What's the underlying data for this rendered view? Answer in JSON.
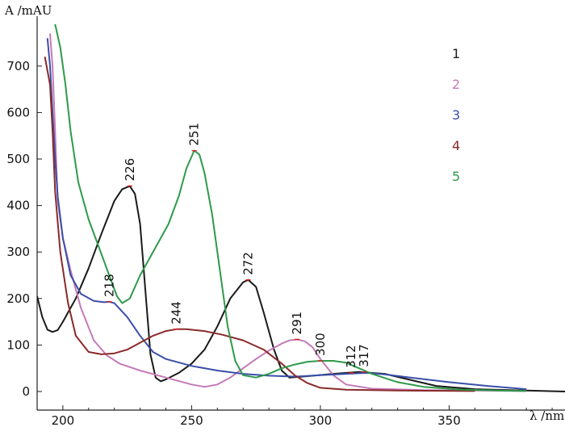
{
  "chart_data": {
    "type": "line",
    "xlabel": "λ /nm",
    "ylabel": "A /mAU",
    "xlim": [
      190,
      395
    ],
    "ylim": [
      -40,
      790
    ],
    "xticks": [
      200,
      250,
      300,
      350
    ],
    "yticks": [
      0,
      100,
      200,
      300,
      400,
      500,
      600,
      700
    ],
    "grid": false,
    "legend": "top-right",
    "series": [
      {
        "name": "1",
        "color": "#1a1a1a",
        "points": [
          [
            190,
            205
          ],
          [
            192,
            160
          ],
          [
            194,
            133
          ],
          [
            196,
            128
          ],
          [
            198,
            132
          ],
          [
            200,
            150
          ],
          [
            205,
            200
          ],
          [
            210,
            265
          ],
          [
            215,
            340
          ],
          [
            220,
            410
          ],
          [
            223,
            435
          ],
          [
            226,
            442
          ],
          [
            228,
            425
          ],
          [
            230,
            360
          ],
          [
            232,
            220
          ],
          [
            234,
            80
          ],
          [
            236,
            30
          ],
          [
            238,
            22
          ],
          [
            240,
            26
          ],
          [
            245,
            40
          ],
          [
            250,
            60
          ],
          [
            255,
            90
          ],
          [
            260,
            140
          ],
          [
            265,
            200
          ],
          [
            270,
            235
          ],
          [
            272,
            240
          ],
          [
            275,
            225
          ],
          [
            278,
            170
          ],
          [
            282,
            90
          ],
          [
            285,
            45
          ],
          [
            288,
            30
          ],
          [
            295,
            33
          ],
          [
            305,
            38
          ],
          [
            315,
            42
          ],
          [
            325,
            38
          ],
          [
            335,
            25
          ],
          [
            345,
            12
          ],
          [
            360,
            5
          ],
          [
            380,
            2
          ],
          [
            395,
            0
          ]
        ]
      },
      {
        "name": "2",
        "color": "#c47ab8",
        "points": [
          [
            195,
            770
          ],
          [
            196,
            700
          ],
          [
            197,
            560
          ],
          [
            198,
            410
          ],
          [
            200,
            330
          ],
          [
            203,
            260
          ],
          [
            207,
            180
          ],
          [
            212,
            110
          ],
          [
            217,
            78
          ],
          [
            222,
            60
          ],
          [
            230,
            45
          ],
          [
            240,
            30
          ],
          [
            250,
            15
          ],
          [
            255,
            10
          ],
          [
            260,
            15
          ],
          [
            265,
            30
          ],
          [
            270,
            50
          ],
          [
            275,
            70
          ],
          [
            280,
            88
          ],
          [
            285,
            103
          ],
          [
            288,
            110
          ],
          [
            291,
            112
          ],
          [
            294,
            108
          ],
          [
            297,
            95
          ],
          [
            300,
            70
          ],
          [
            305,
            35
          ],
          [
            310,
            15
          ],
          [
            320,
            6
          ],
          [
            340,
            3
          ],
          [
            360,
            2
          ],
          [
            380,
            1
          ]
        ]
      },
      {
        "name": "3",
        "color": "#3a4fa8",
        "points": [
          [
            194,
            760
          ],
          [
            195,
            700
          ],
          [
            196,
            600
          ],
          [
            197,
            500
          ],
          [
            198,
            420
          ],
          [
            200,
            330
          ],
          [
            203,
            250
          ],
          [
            207,
            210
          ],
          [
            212,
            195
          ],
          [
            216,
            192
          ],
          [
            218,
            193
          ],
          [
            220,
            190
          ],
          [
            225,
            160
          ],
          [
            230,
            120
          ],
          [
            235,
            85
          ],
          [
            240,
            70
          ],
          [
            250,
            55
          ],
          [
            260,
            45
          ],
          [
            270,
            38
          ],
          [
            280,
            34
          ],
          [
            290,
            32
          ],
          [
            300,
            35
          ],
          [
            310,
            38
          ],
          [
            318,
            40
          ],
          [
            325,
            37
          ],
          [
            335,
            30
          ],
          [
            350,
            20
          ],
          [
            365,
            12
          ],
          [
            380,
            5
          ]
        ]
      },
      {
        "name": "4",
        "color": "#8a2a2a",
        "points": [
          [
            193,
            720
          ],
          [
            195,
            660
          ],
          [
            196,
            560
          ],
          [
            197,
            430
          ],
          [
            199,
            300
          ],
          [
            202,
            190
          ],
          [
            205,
            120
          ],
          [
            210,
            85
          ],
          [
            215,
            80
          ],
          [
            220,
            82
          ],
          [
            225,
            90
          ],
          [
            230,
            105
          ],
          [
            235,
            120
          ],
          [
            240,
            130
          ],
          [
            244,
            134
          ],
          [
            248,
            134
          ],
          [
            255,
            130
          ],
          [
            262,
            122
          ],
          [
            270,
            110
          ],
          [
            278,
            90
          ],
          [
            285,
            60
          ],
          [
            290,
            35
          ],
          [
            295,
            18
          ],
          [
            300,
            8
          ],
          [
            310,
            4
          ],
          [
            330,
            2
          ],
          [
            360,
            1
          ]
        ]
      },
      {
        "name": "5",
        "color": "#2e9a4a",
        "points": [
          [
            197,
            790
          ],
          [
            199,
            740
          ],
          [
            201,
            660
          ],
          [
            203,
            560
          ],
          [
            206,
            450
          ],
          [
            210,
            370
          ],
          [
            214,
            310
          ],
          [
            218,
            250
          ],
          [
            221,
            205
          ],
          [
            223,
            190
          ],
          [
            226,
            200
          ],
          [
            230,
            250
          ],
          [
            236,
            310
          ],
          [
            241,
            360
          ],
          [
            245,
            420
          ],
          [
            248,
            480
          ],
          [
            251,
            518
          ],
          [
            253,
            510
          ],
          [
            255,
            470
          ],
          [
            258,
            380
          ],
          [
            261,
            260
          ],
          [
            264,
            140
          ],
          [
            267,
            65
          ],
          [
            270,
            35
          ],
          [
            275,
            30
          ],
          [
            280,
            38
          ],
          [
            285,
            50
          ],
          [
            290,
            58
          ],
          [
            295,
            64
          ],
          [
            300,
            66
          ],
          [
            305,
            66
          ],
          [
            310,
            62
          ],
          [
            315,
            50
          ],
          [
            320,
            38
          ],
          [
            330,
            20
          ],
          [
            340,
            10
          ],
          [
            355,
            4
          ],
          [
            370,
            2
          ],
          [
            380,
            1
          ]
        ]
      }
    ],
    "peak_labels": [
      {
        "text": "226",
        "x": 226,
        "y": 442,
        "series": "1"
      },
      {
        "text": "251",
        "x": 251,
        "y": 518,
        "series": "5"
      },
      {
        "text": "272",
        "x": 272,
        "y": 240,
        "series": "1"
      },
      {
        "text": "218",
        "x": 218,
        "y": 193,
        "series": "3"
      },
      {
        "text": "244",
        "x": 244,
        "y": 134,
        "series": "4"
      },
      {
        "text": "291",
        "x": 291,
        "y": 112,
        "series": "2"
      },
      {
        "text": "300",
        "x": 300,
        "y": 66,
        "series": "5"
      },
      {
        "text": "312",
        "x": 312,
        "y": 40,
        "series": "3"
      },
      {
        "text": "317",
        "x": 317,
        "y": 42,
        "series": "1"
      }
    ]
  }
}
